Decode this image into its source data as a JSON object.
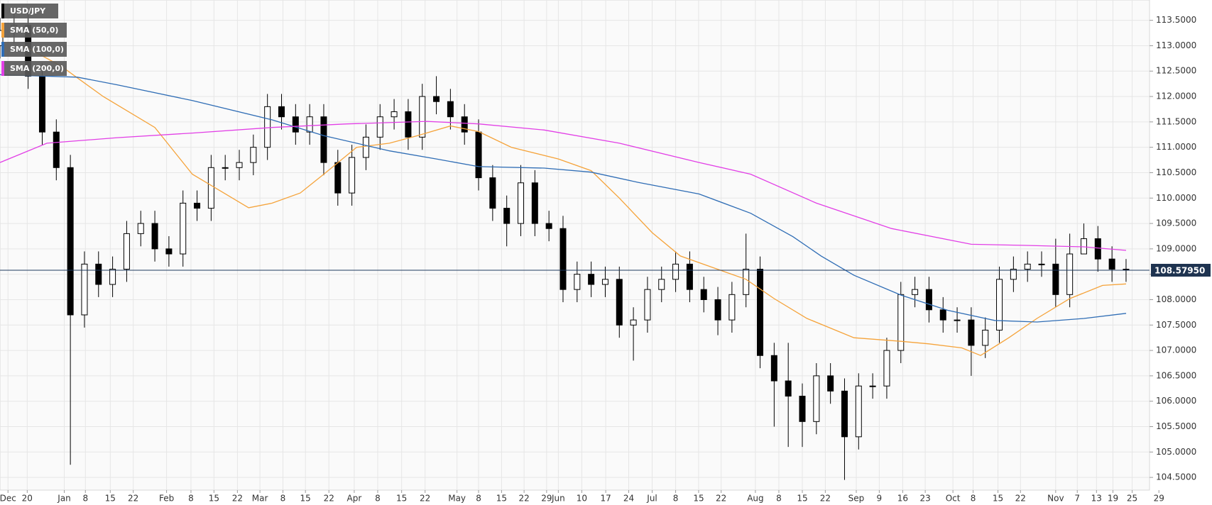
{
  "chart_data": {
    "type": "candlestick",
    "name": "USD/JPY",
    "up_color": "#ffffff",
    "down_color": "#000000",
    "grid": true,
    "legend_corner": "top-left",
    "x": [
      0,
      3,
      6,
      9,
      12,
      15,
      18,
      21,
      24,
      27,
      30,
      33,
      36,
      39,
      42,
      45,
      48,
      51,
      54,
      57,
      60,
      63,
      66,
      69,
      72,
      75,
      78,
      81,
      84,
      87,
      90,
      93,
      96,
      99,
      102,
      105,
      108,
      111,
      114,
      117,
      120,
      123,
      126,
      129,
      132,
      135,
      138,
      141,
      144,
      147,
      150,
      153,
      156,
      159,
      162,
      165,
      168,
      171,
      174,
      177,
      180,
      183,
      186,
      189,
      192,
      195,
      198,
      201,
      204,
      207,
      210,
      213,
      216,
      219,
      222,
      225,
      228,
      231,
      234,
      237,
      240
    ],
    "open": [
      113.0,
      113.3,
      113.4,
      112.4,
      111.3,
      110.6,
      107.7,
      108.7,
      108.3,
      108.6,
      109.3,
      109.5,
      109.0,
      108.9,
      109.9,
      109.8,
      110.6,
      110.6,
      110.7,
      111.0,
      111.8,
      111.6,
      111.3,
      111.6,
      110.7,
      110.1,
      110.8,
      111.2,
      111.6,
      111.7,
      111.2,
      112.0,
      111.9,
      111.6,
      111.3,
      110.4,
      109.8,
      109.5,
      110.3,
      109.5,
      109.4,
      108.2,
      108.5,
      108.3,
      108.4,
      107.5,
      107.6,
      108.2,
      108.4,
      108.7,
      108.2,
      108.0,
      107.6,
      108.1,
      108.6,
      106.9,
      106.4,
      106.1,
      105.6,
      106.5,
      106.2,
      105.3,
      106.3,
      106.3,
      107.0,
      108.1,
      108.2,
      107.8,
      107.6,
      107.6,
      107.1,
      107.4,
      108.4,
      108.6,
      108.7,
      108.7,
      108.1,
      108.9,
      109.2,
      108.8,
      108.6
    ],
    "high": [
      113.55,
      113.65,
      113.65,
      112.65,
      111.55,
      110.85,
      108.95,
      108.95,
      108.85,
      109.55,
      109.75,
      109.75,
      109.25,
      110.15,
      110.15,
      110.85,
      110.85,
      110.95,
      111.25,
      112.05,
      112.05,
      111.85,
      111.85,
      111.85,
      110.95,
      111.05,
      111.45,
      111.85,
      111.95,
      111.95,
      112.25,
      112.4,
      112.15,
      111.85,
      111.55,
      110.65,
      110.05,
      110.65,
      110.55,
      109.75,
      109.65,
      108.75,
      108.75,
      108.65,
      108.65,
      107.85,
      108.45,
      108.65,
      108.95,
      108.95,
      108.45,
      108.25,
      108.35,
      109.3,
      108.85,
      107.15,
      107.15,
      106.35,
      106.75,
      106.75,
      106.45,
      106.55,
      106.55,
      107.25,
      108.35,
      108.45,
      108.45,
      108.05,
      107.85,
      107.85,
      107.65,
      108.65,
      108.85,
      108.95,
      108.95,
      109.2,
      109.3,
      109.5,
      109.45,
      109.05,
      108.8
    ],
    "low": [
      112.75,
      113.05,
      112.15,
      111.05,
      110.35,
      104.75,
      107.45,
      108.05,
      108.05,
      108.35,
      109.05,
      108.75,
      108.65,
      108.65,
      109.55,
      109.55,
      110.35,
      110.35,
      110.45,
      110.75,
      111.35,
      111.05,
      111.05,
      110.45,
      109.85,
      109.85,
      110.55,
      110.95,
      111.35,
      110.95,
      110.95,
      111.65,
      111.35,
      111.05,
      110.15,
      109.55,
      109.05,
      109.25,
      109.25,
      109.15,
      107.95,
      107.95,
      108.05,
      108.05,
      107.25,
      106.8,
      107.35,
      107.95,
      108.15,
      107.95,
      107.75,
      107.3,
      107.35,
      107.85,
      106.65,
      105.5,
      105.1,
      105.1,
      105.35,
      105.95,
      104.45,
      105.05,
      106.05,
      106.05,
      106.75,
      107.85,
      107.55,
      107.35,
      107.35,
      106.5,
      106.85,
      107.15,
      108.15,
      108.35,
      108.45,
      107.85,
      107.85,
      108.95,
      108.55,
      108.35,
      108.35
    ],
    "close": [
      113.3,
      113.4,
      112.4,
      111.3,
      110.6,
      107.7,
      108.7,
      108.3,
      108.6,
      109.3,
      109.5,
      109.0,
      108.9,
      109.9,
      109.8,
      110.6,
      110.6,
      110.7,
      111.0,
      111.8,
      111.6,
      111.3,
      111.6,
      110.7,
      110.1,
      110.8,
      111.2,
      111.6,
      111.7,
      111.2,
      112.0,
      111.9,
      111.6,
      111.3,
      110.4,
      109.8,
      109.5,
      110.3,
      109.5,
      109.4,
      108.2,
      108.5,
      108.3,
      108.4,
      107.5,
      107.6,
      108.2,
      108.4,
      108.7,
      108.2,
      108.0,
      107.6,
      108.1,
      108.6,
      106.9,
      106.4,
      106.1,
      105.6,
      106.5,
      106.2,
      105.3,
      106.3,
      106.3,
      107.0,
      108.1,
      108.2,
      107.8,
      107.6,
      107.6,
      107.1,
      107.4,
      108.4,
      108.6,
      108.7,
      108.7,
      108.1,
      108.9,
      109.2,
      108.8,
      108.6,
      108.58
    ],
    "lines": [
      {
        "name": "SMA (50,0)",
        "color": "#f5a33a",
        "x": [
          5,
          13,
          22,
          33,
          41,
          53,
          58,
          64,
          69,
          76,
          83,
          89,
          96,
          102,
          109,
          119,
          126,
          132,
          139,
          145,
          152,
          159,
          165,
          172,
          182,
          192,
          198,
          205,
          209,
          215,
          221,
          228,
          235,
          240
        ],
        "values": [
          113.0,
          112.6,
          112.0,
          111.39,
          110.47,
          109.81,
          109.9,
          110.1,
          110.47,
          111.0,
          111.08,
          111.23,
          111.42,
          111.31,
          111.0,
          110.77,
          110.54,
          110.0,
          109.32,
          108.86,
          108.63,
          108.4,
          108.02,
          107.63,
          107.25,
          107.18,
          107.13,
          107.05,
          106.9,
          107.25,
          107.63,
          108.02,
          108.28,
          108.31
        ]
      },
      {
        "name": "SMA (100,0)",
        "color": "#2f6db5",
        "x": [
          0,
          16.5,
          25,
          41,
          58,
          69,
          83,
          93,
          102,
          116,
          126,
          136,
          149,
          160,
          169,
          175,
          182,
          192,
          202,
          212,
          221,
          231,
          240
        ],
        "values": [
          112.43,
          112.38,
          112.23,
          111.92,
          111.54,
          111.23,
          110.93,
          110.77,
          110.62,
          110.59,
          110.51,
          110.31,
          110.08,
          109.7,
          109.24,
          108.86,
          108.48,
          108.09,
          107.79,
          107.59,
          107.56,
          107.63,
          107.73
        ]
      },
      {
        "name": "SMA (200,0)",
        "color": "#e23fe6",
        "x": [
          0,
          10,
          25,
          41,
          58,
          74,
          91,
          102,
          116,
          132,
          149,
          160,
          174,
          190,
          207,
          218,
          231,
          240
        ],
        "values": [
          110.7,
          111.08,
          111.19,
          111.28,
          111.39,
          111.46,
          111.51,
          111.46,
          111.34,
          111.08,
          110.7,
          110.47,
          109.9,
          109.4,
          109.09,
          109.07,
          109.04,
          108.97
        ]
      }
    ],
    "last_price": {
      "value": 108.5795,
      "label": "108.57950"
    },
    "xlim": [
      0,
      245
    ],
    "ylim": [
      104.25,
      113.9
    ],
    "xticks": [
      {
        "value": 1.7,
        "label": "Dec"
      },
      {
        "value": 5.8,
        "label": "20"
      },
      {
        "value": 13.7,
        "label": "Jan"
      },
      {
        "value": 18.2,
        "label": "8"
      },
      {
        "value": 23.5,
        "label": "15"
      },
      {
        "value": 28.4,
        "label": "22"
      },
      {
        "value": 35.5,
        "label": "Feb"
      },
      {
        "value": 40.7,
        "label": "8"
      },
      {
        "value": 45.6,
        "label": "15"
      },
      {
        "value": 50.6,
        "label": "22"
      },
      {
        "value": 55.4,
        "label": "Mar"
      },
      {
        "value": 60.3,
        "label": "8"
      },
      {
        "value": 65.1,
        "label": "15"
      },
      {
        "value": 70.1,
        "label": "22"
      },
      {
        "value": 75.5,
        "label": "Apr"
      },
      {
        "value": 80.5,
        "label": "8"
      },
      {
        "value": 85.6,
        "label": "15"
      },
      {
        "value": 90.6,
        "label": "22"
      },
      {
        "value": 97.4,
        "label": "May"
      },
      {
        "value": 102,
        "label": "8"
      },
      {
        "value": 106.9,
        "label": "15"
      },
      {
        "value": 111.7,
        "label": "22"
      },
      {
        "value": 116.5,
        "label": "29"
      },
      {
        "value": 119,
        "label": "Jun"
      },
      {
        "value": 124,
        "label": "10"
      },
      {
        "value": 129.1,
        "label": "17"
      },
      {
        "value": 134,
        "label": "24"
      },
      {
        "value": 139,
        "label": "Jul"
      },
      {
        "value": 144,
        "label": "8"
      },
      {
        "value": 148.9,
        "label": "15"
      },
      {
        "value": 153.7,
        "label": "22"
      },
      {
        "value": 161,
        "label": "Aug"
      },
      {
        "value": 166,
        "label": "8"
      },
      {
        "value": 171,
        "label": "15"
      },
      {
        "value": 175.9,
        "label": "22"
      },
      {
        "value": 182.5,
        "label": "Sep"
      },
      {
        "value": 187.4,
        "label": "9"
      },
      {
        "value": 192.4,
        "label": "16"
      },
      {
        "value": 197.2,
        "label": "23"
      },
      {
        "value": 203.1,
        "label": "Oct"
      },
      {
        "value": 207.4,
        "label": "8"
      },
      {
        "value": 212.7,
        "label": "15"
      },
      {
        "value": 217.5,
        "label": "22"
      },
      {
        "value": 225,
        "label": "Nov"
      },
      {
        "value": 229.6,
        "label": "7"
      },
      {
        "value": 233.7,
        "label": "13"
      },
      {
        "value": 237.2,
        "label": "19"
      },
      {
        "value": 241.3,
        "label": "25"
      },
      {
        "value": 247,
        "label": "29"
      }
    ],
    "yticks": [
      {
        "value": 104.5,
        "label": "104.5000"
      },
      {
        "value": 105,
        "label": "105.0000"
      },
      {
        "value": 105.5,
        "label": "105.5000"
      },
      {
        "value": 106,
        "label": "106.0000"
      },
      {
        "value": 106.5,
        "label": "106.5000"
      },
      {
        "value": 107,
        "label": "107.0000"
      },
      {
        "value": 107.5,
        "label": "107.5000"
      },
      {
        "value": 108,
        "label": "108.0000"
      },
      {
        "value": 108.5,
        "label": "108.5000"
      },
      {
        "value": 109,
        "label": "109.0000"
      },
      {
        "value": 109.5,
        "label": "109.5000"
      },
      {
        "value": 110,
        "label": "110.0000"
      },
      {
        "value": 110.5,
        "label": "110.5000"
      },
      {
        "value": 111,
        "label": "111.0000"
      },
      {
        "value": 111.5,
        "label": "111.5000"
      },
      {
        "value": 112,
        "label": "112.0000"
      },
      {
        "value": 112.5,
        "label": "112.5000"
      },
      {
        "value": 113,
        "label": "113.0000"
      },
      {
        "value": 113.5,
        "label": "113.5000"
      }
    ]
  }
}
